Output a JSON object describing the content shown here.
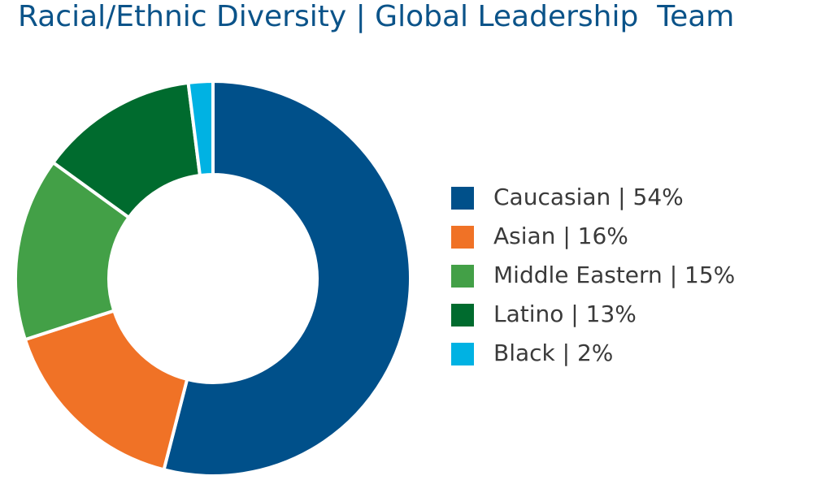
{
  "chart_data": {
    "type": "donut",
    "title": "Racial/Ethnic Diversity | Global Leadership  Team",
    "categories": [
      "Caucasian | 54%",
      "Asian | 16%",
      "Middle Eastern | 15%",
      "Latino | 13%",
      "Black | 2%"
    ],
    "values": [
      54,
      16,
      15,
      13,
      2
    ],
    "colors": [
      "#00508a",
      "#f07226",
      "#43a047",
      "#006b2e",
      "#00b2e3"
    ],
    "legend": "right"
  }
}
